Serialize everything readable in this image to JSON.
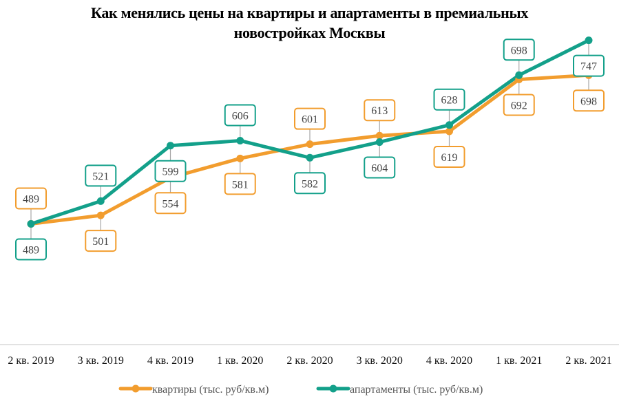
{
  "chart_data": {
    "type": "line",
    "title": "Как менялись цены на квартиры и апартаменты  в премиальных новостройках  Москвы",
    "title_lines": [
      "Как менялись цены на квартиры и апартаменты  в премиальных",
      "новостройках  Москвы"
    ],
    "categories": [
      "2 кв. 2019",
      "3 кв. 2019",
      "4 кв. 2019",
      "1 кв. 2020",
      "2 кв. 2020",
      "3 кв. 2020",
      "4 кв. 2020",
      "1 кв. 2021",
      "2 кв. 2021"
    ],
    "series": [
      {
        "name": "квартиры (тыс. руб/кв.м)",
        "color": "#F29D2E",
        "values": [
          489,
          501,
          554,
          581,
          601,
          613,
          619,
          692,
          698
        ],
        "label_positions": [
          "above",
          "below",
          "below",
          "below",
          "above",
          "above",
          "below",
          "below",
          "below"
        ]
      },
      {
        "name": "апартаменты (тыс. руб/кв.м)",
        "color": "#13A08A",
        "values": [
          489,
          521,
          599,
          606,
          582,
          604,
          628,
          698,
          747
        ],
        "label_positions": [
          "below",
          "above",
          "below",
          "above",
          "below",
          "below",
          "above",
          "above",
          "below"
        ]
      }
    ],
    "xlabel": "",
    "ylabel": "",
    "ylim": [
      388,
      765
    ],
    "grid": false,
    "y_axis_visible": false,
    "legend": "bottom-center",
    "data_labels": true
  }
}
